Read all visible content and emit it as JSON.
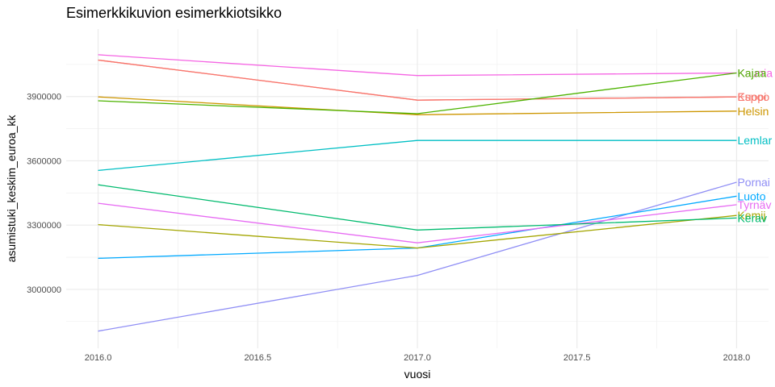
{
  "chart_data": {
    "type": "line",
    "title": "Esimerkkikuvion esimerkkiotsikko",
    "xlabel": "vuosi",
    "ylabel": "asumistuki_keskim_euroa_kk",
    "x": [
      2016,
      2017,
      2018
    ],
    "xlim": [
      2015.9,
      2018.1
    ],
    "ylim": [
      2725000,
      4215000
    ],
    "xticks": [
      2016.0,
      2016.5,
      2017.0,
      2017.5,
      2018.0
    ],
    "xtick_labels": [
      "2016.0",
      "2016.5",
      "2017.0",
      "2017.5",
      "2018.0"
    ],
    "yticks": [
      3000000,
      3300000,
      3600000,
      3900000
    ],
    "ytick_labels": [
      "3000000",
      "3300000",
      "3600000",
      "3900000"
    ],
    "grid": true,
    "legend": "none",
    "series": [
      {
        "name": "Kauniainen",
        "label": "Kaunia",
        "color": "#F564E3",
        "values": [
          4095000,
          3998000,
          4010000
        ]
      },
      {
        "name": "Kuopio",
        "label": "Kuopi",
        "color": "#F8766D",
        "values": [
          4070000,
          3883000,
          3898000
        ]
      },
      {
        "name": "Espoo",
        "label": "Espoo",
        "color": "#F8766D",
        "values": [
          4070000,
          3883000,
          3898000
        ]
      },
      {
        "name": "Helsinki",
        "label": "Helsin",
        "color": "#CD9600",
        "values": [
          3898000,
          3815000,
          3832000
        ]
      },
      {
        "name": "Kajaani",
        "label": "Kajaa",
        "color": "#4DB300",
        "values": [
          3880000,
          3820000,
          4010000
        ]
      },
      {
        "name": "Lemland",
        "label": "Lemlar",
        "color": "#00BFC4",
        "values": [
          3555000,
          3695000,
          3695000
        ]
      },
      {
        "name": "Pornainen",
        "label": "Pornai",
        "color": "#8F8EF5",
        "values": [
          2805000,
          3065000,
          3500000
        ]
      },
      {
        "name": "Luoto",
        "label": "Luoto",
        "color": "#00A9FF",
        "values": [
          3145000,
          3193000,
          3435000
        ]
      },
      {
        "name": "Tyrnävä",
        "label": "Tyrnäv",
        "color": "#E76BF3",
        "values": [
          3402000,
          3217000,
          3395000
        ]
      },
      {
        "name": "Kemijärvi",
        "label": "Kemij",
        "color": "#A3A500",
        "values": [
          3302000,
          3193000,
          3345000
        ]
      },
      {
        "name": "Kerava",
        "label": "Kerav",
        "color": "#00BA6E",
        "values": [
          3488000,
          3277000,
          3333000
        ]
      }
    ]
  }
}
